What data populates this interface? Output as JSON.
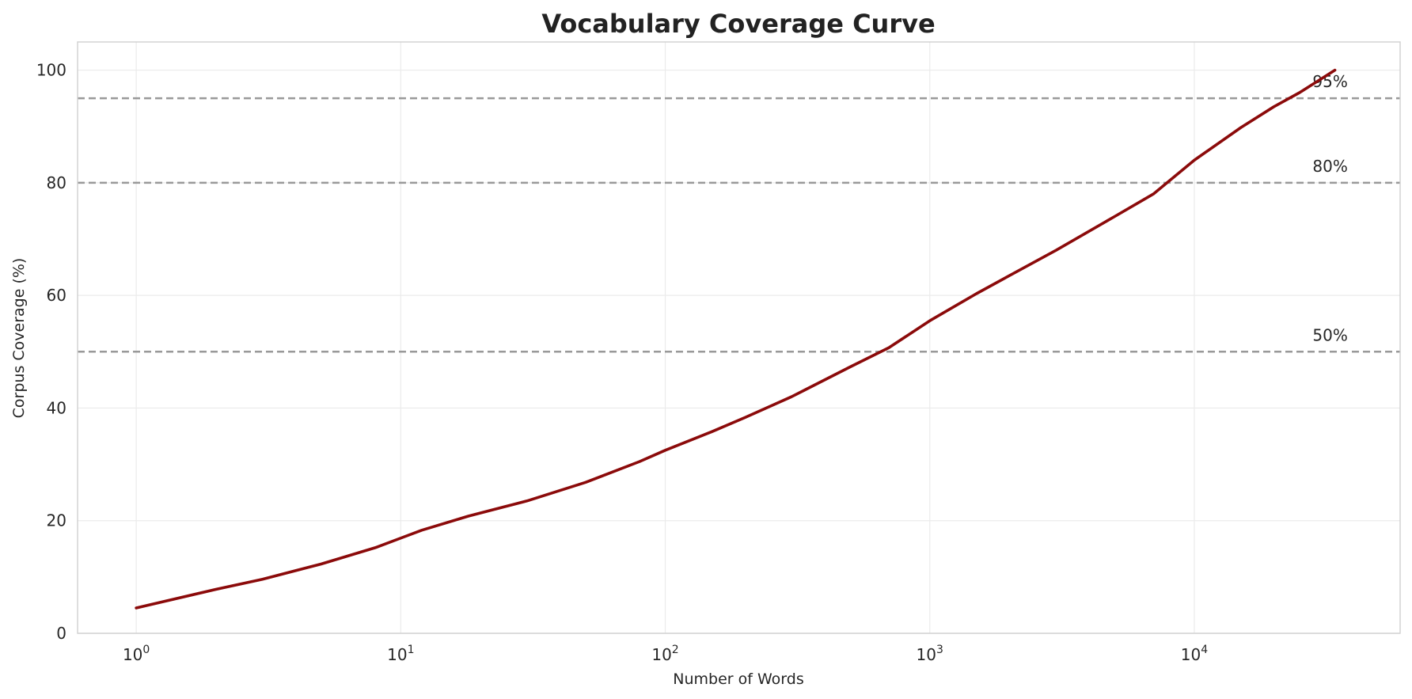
{
  "chart_data": {
    "type": "line",
    "title": "Vocabulary Coverage Curve",
    "xlabel": "Number of Words",
    "ylabel": "Corpus Coverage (%)",
    "x_scale": "log",
    "xlim": [
      0.6,
      60000
    ],
    "ylim": [
      0,
      105
    ],
    "grid": true,
    "x_ticks": [
      {
        "value": 1,
        "base": "10",
        "exp": "0"
      },
      {
        "value": 10,
        "base": "10",
        "exp": "1"
      },
      {
        "value": 100,
        "base": "10",
        "exp": "2"
      },
      {
        "value": 1000,
        "base": "10",
        "exp": "3"
      },
      {
        "value": 10000,
        "base": "10",
        "exp": "4"
      }
    ],
    "y_ticks": [
      {
        "value": 0,
        "label": "0"
      },
      {
        "value": 20,
        "label": "20"
      },
      {
        "value": 40,
        "label": "40"
      },
      {
        "value": 60,
        "label": "60"
      },
      {
        "value": 80,
        "label": "80"
      },
      {
        "value": 100,
        "label": "100"
      }
    ],
    "series": [
      {
        "color": "#8b0a0a",
        "x": [
          1,
          2,
          3,
          5,
          8,
          12,
          18,
          30,
          50,
          80,
          100,
          150,
          200,
          300,
          500,
          700,
          1000,
          1500,
          2000,
          3000,
          5000,
          7000,
          10000,
          15000,
          20000,
          25000,
          34000
        ],
        "y": [
          4.5,
          7.8,
          9.6,
          12.3,
          15.2,
          18.3,
          20.8,
          23.5,
          26.8,
          30.5,
          32.5,
          35.8,
          38.3,
          42.0,
          47.3,
          50.7,
          55.5,
          60.3,
          63.5,
          68.0,
          74.0,
          78.0,
          84.0,
          89.8,
          93.5,
          96.0,
          100.0
        ]
      }
    ],
    "reference_lines": [
      {
        "y": 95,
        "label": "95%",
        "color": "#999999"
      },
      {
        "y": 80,
        "label": "80%",
        "color": "#999999"
      },
      {
        "y": 50,
        "label": "50%",
        "color": "#999999"
      }
    ]
  }
}
